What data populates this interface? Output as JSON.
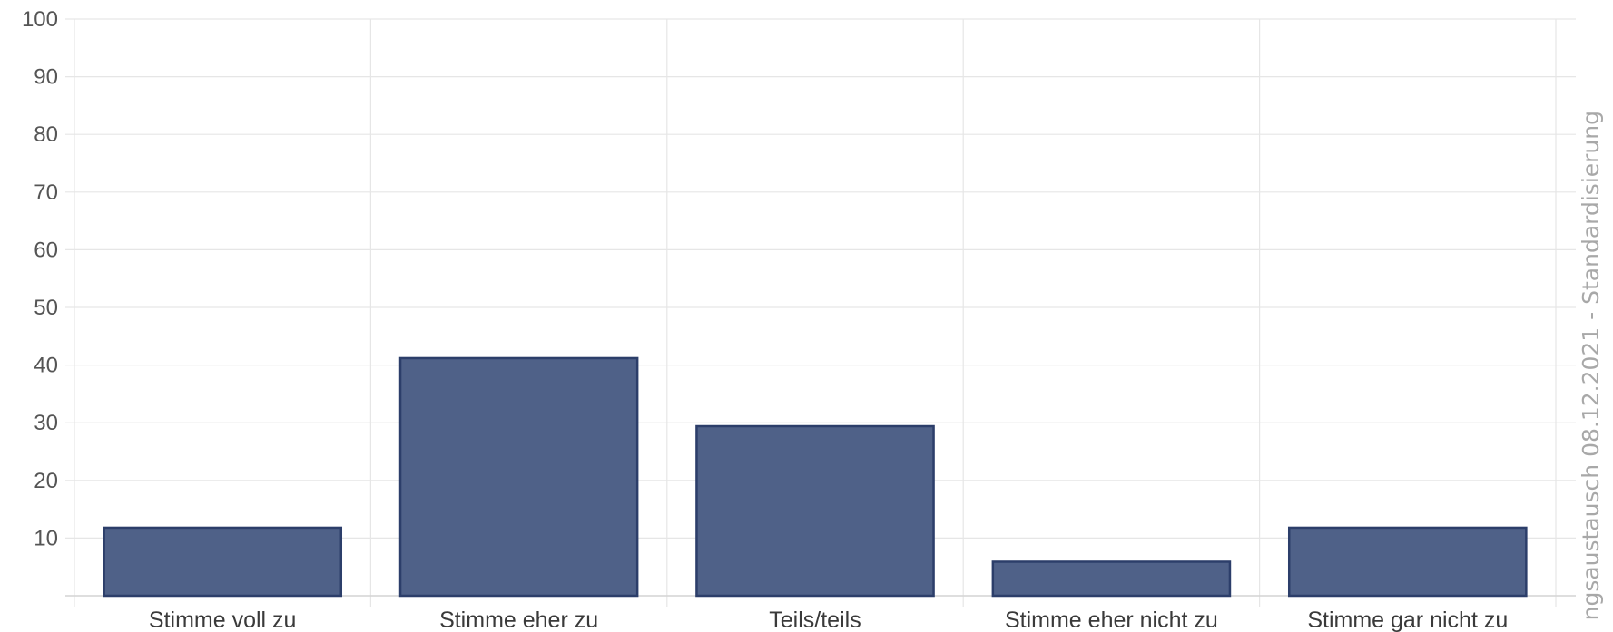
{
  "chart_data": {
    "type": "bar",
    "categories": [
      "Stimme voll zu",
      "Stimme eher zu",
      "Teils/teils",
      "Stimme eher nicht zu",
      "Stimme gar nicht zu"
    ],
    "values": [
      11.8,
      41.2,
      29.4,
      5.9,
      11.8
    ],
    "ylim": [
      0,
      100
    ],
    "yticks": [
      "10",
      "20",
      "30",
      "40",
      "50",
      "60",
      "70",
      "80",
      "90",
      "100"
    ],
    "grid": true,
    "legend": "none",
    "bar_color": "#4f6188",
    "bar_border_color": "#2c3e6a"
  },
  "watermark": "ngsaustausch 08.12.2021 - Standardisierung"
}
